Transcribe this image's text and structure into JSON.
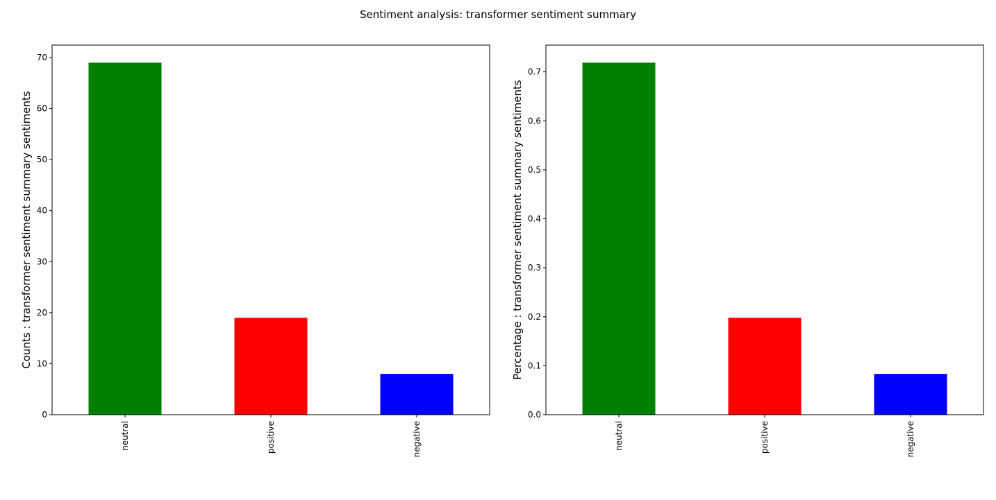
{
  "figure": {
    "suptitle": "Sentiment analysis: transformer sentiment summary"
  },
  "chart_data": [
    {
      "type": "bar",
      "categories": [
        "neutral",
        "positive",
        "negative"
      ],
      "values": [
        69,
        19,
        8
      ],
      "colors": [
        "#008000",
        "#ff0000",
        "#0000ff"
      ],
      "title": "",
      "xlabel": "",
      "ylabel": "Counts : transformer sentiment summary sentiments",
      "ylim": [
        0,
        72.45
      ],
      "yticks": [
        0,
        10,
        20,
        30,
        40,
        50,
        60,
        70
      ],
      "ytick_labels": [
        "0",
        "10",
        "20",
        "30",
        "40",
        "50",
        "60",
        "70"
      ],
      "grid": false,
      "legend": "none"
    },
    {
      "type": "bar",
      "categories": [
        "neutral",
        "positive",
        "negative"
      ],
      "values": [
        0.71875,
        0.197917,
        0.083333
      ],
      "colors": [
        "#008000",
        "#ff0000",
        "#0000ff"
      ],
      "title": "",
      "xlabel": "",
      "ylabel": "Percentage : transformer sentiment summary sentiments",
      "ylim": [
        0,
        0.7547
      ],
      "yticks": [
        0,
        0.1,
        0.2,
        0.3,
        0.4,
        0.5,
        0.6,
        0.7
      ],
      "ytick_labels": [
        "0.0",
        "0.1",
        "0.2",
        "0.3",
        "0.4",
        "0.5",
        "0.6",
        "0.7"
      ],
      "grid": false,
      "legend": "none"
    }
  ]
}
